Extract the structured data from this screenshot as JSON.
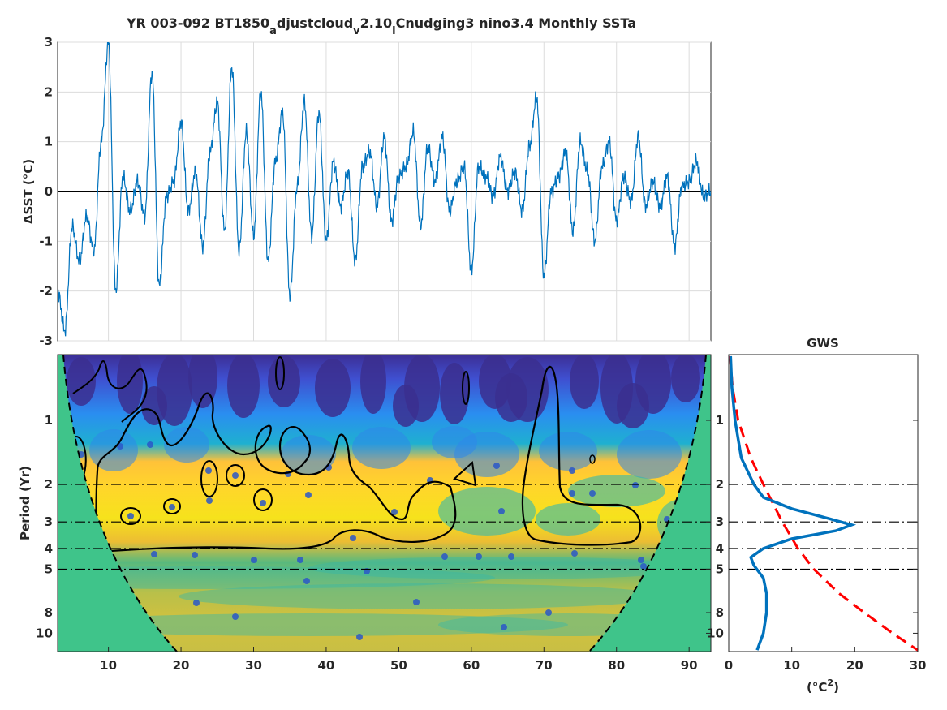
{
  "title": {
    "prefix": "YR 003-092 BT1850",
    "sub_a": "a",
    "part_2": "djustcloud",
    "sub_v": "v",
    "part_3": "2.10",
    "sub_l": "l",
    "suffix": "Cnudging3 nino3.4 Monthly SSTa"
  },
  "timeseries": {
    "ylabel": "ΔSST (°C)",
    "ylim": [
      -3,
      3
    ],
    "xlim": [
      3,
      93
    ],
    "yticks": [
      "3",
      "2",
      "1",
      "0",
      "-1",
      "-2",
      "-3"
    ],
    "xticks": [
      "10",
      "20",
      "30",
      "40",
      "50",
      "60",
      "70",
      "80",
      "90"
    ],
    "grid": true,
    "line_color": "#0072BD"
  },
  "wavelet": {
    "ylabel": "Period (Yr)",
    "yticks": [
      "1",
      "2",
      "3",
      "4",
      "5",
      "8",
      "10"
    ],
    "xticks": [
      "10",
      "20",
      "30",
      "40",
      "50",
      "60",
      "70",
      "80",
      "90"
    ],
    "reference_periods": [
      2,
      3,
      4,
      5
    ],
    "colormap": "parula"
  },
  "gws": {
    "title": "GWS",
    "xlabel_base": "(°C",
    "xlabel_sup": "2",
    "xlabel_end": ")",
    "xticks": [
      "0",
      "10",
      "20",
      "30"
    ],
    "yticks": [
      "1",
      "2",
      "3",
      "4",
      "5",
      "8",
      "10"
    ],
    "xlim": [
      0,
      30
    ],
    "spectrum_color": "#0072BD",
    "significance_color": "#FF0000"
  },
  "chart_data": [
    {
      "type": "line",
      "title": "YR 003-092 BT1850_adjustcloud_v2.10_lCnudging3 nino3.4 Monthly SSTa",
      "xlabel": "",
      "ylabel": "ΔSST (°C)",
      "xlim": [
        3,
        93
      ],
      "ylim": [
        -3,
        3
      ],
      "grid": true,
      "series": [
        {
          "x": [
            3,
            4,
            5,
            6,
            7,
            8,
            9,
            10,
            11,
            12,
            13,
            14,
            15,
            16,
            17,
            18,
            19,
            20,
            21,
            22,
            23,
            24,
            25,
            26,
            27,
            28,
            29,
            30,
            31,
            32,
            33,
            34,
            35,
            36,
            37,
            38,
            39,
            40,
            41,
            42,
            43,
            44,
            45,
            46,
            47,
            48,
            49,
            50,
            51,
            52,
            53,
            54,
            55,
            56,
            57,
            58,
            59,
            60,
            61,
            62,
            63,
            64,
            65,
            66,
            67,
            68,
            69,
            70,
            71,
            72,
            73,
            74,
            75,
            76,
            77,
            78,
            79,
            80,
            81,
            82,
            83,
            84,
            85,
            86,
            87,
            88,
            89,
            90,
            91,
            92,
            93
          ],
          "values": [
            -2.0,
            -2.8,
            -0.7,
            -1.4,
            -0.5,
            -1.2,
            1.0,
            3.0,
            -2.0,
            0.3,
            -0.4,
            0.2,
            -0.5,
            2.4,
            -1.9,
            -0.1,
            0.2,
            1.4,
            -0.4,
            0.4,
            -1.1,
            0.8,
            1.8,
            -0.8,
            2.5,
            -1.2,
            1.2,
            -0.9,
            2.0,
            -1.4,
            0.6,
            1.6,
            -2.1,
            0.1,
            1.8,
            -0.9,
            1.6,
            -1.0,
            0.6,
            -0.3,
            0.4,
            -1.4,
            0.5,
            0.8,
            -0.3,
            1.1,
            -0.6,
            0.3,
            0.5,
            1.2,
            -0.7,
            0.9,
            0.2,
            1.1,
            -0.4,
            0.2,
            0.5,
            -1.6,
            0.5,
            0.3,
            -0.1,
            0.7,
            0.0,
            0.4,
            -0.4,
            0.9,
            1.9,
            -1.7,
            0.0,
            0.3,
            0.8,
            -0.8,
            1.0,
            0.4,
            -1.0,
            0.5,
            1.0,
            -0.6,
            0.3,
            -0.2,
            1.1,
            -0.3,
            0.2,
            -0.3,
            0.3,
            -1.1,
            0.1,
            0.2,
            0.6,
            -0.1,
            0.0
          ]
        }
      ]
    },
    {
      "type": "heatmap",
      "title": "",
      "xlabel": "",
      "ylabel": "Period (Yr)",
      "xlim": [
        3,
        93
      ],
      "ylim_period": [
        0.5,
        12
      ],
      "yscale": "log",
      "significance_contours": true,
      "cone_of_influence": true,
      "high_power_band_period": [
        2,
        4
      ],
      "reference_periods": [
        2,
        3,
        4,
        5
      ]
    },
    {
      "type": "line",
      "title": "GWS",
      "xlabel": "(°C²)",
      "ylabel": "",
      "xlim": [
        0,
        30
      ],
      "yscale": "log",
      "series": [
        {
          "name": "",
          "period": [
            0.5,
            0.7,
            1.0,
            1.5,
            2.0,
            2.3,
            2.6,
            2.9,
            3.1,
            3.3,
            3.6,
            4.0,
            4.4,
            4.8,
            5.5,
            6.5,
            8.0,
            10.0,
            12.0
          ],
          "values": [
            0.3,
            0.5,
            1.0,
            2.0,
            4.0,
            5.5,
            10.0,
            16.0,
            19.5,
            17.0,
            10.0,
            5.5,
            3.5,
            4.0,
            5.5,
            6.0,
            6.0,
            5.5,
            4.5
          ]
        },
        {
          "name": "",
          "period": [
            0.5,
            0.7,
            1.0,
            1.5,
            2.0,
            3.0,
            4.0,
            5.0,
            6.5,
            8.0,
            10.0,
            12.0
          ],
          "values": [
            0.2,
            0.6,
            1.5,
            3.5,
            5.5,
            8.5,
            11.0,
            13.5,
            17.5,
            21.5,
            26.0,
            30.0
          ]
        }
      ]
    }
  ]
}
